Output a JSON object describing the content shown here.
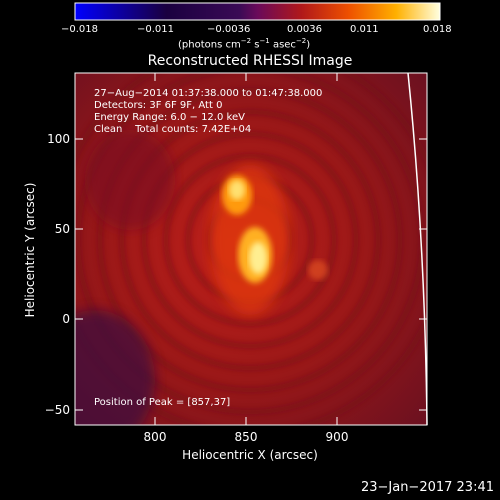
{
  "colorbar": {
    "tick_labels": [
      "−0.018",
      "−0.011",
      "−0.0036",
      "0.0036",
      "0.011",
      "0.018"
    ],
    "units_main": "(photons cm",
    "units_sup1": "−2",
    "units_mid": " s",
    "units_sup2": "−1",
    "units_mid2": " asec",
    "units_sup3": "−2",
    "units_end": ")"
  },
  "title": "Reconstructed RHESSI Image",
  "annotations": {
    "time_range": "27−Aug−2014 01:37:38.000 to 01:47:38.000",
    "detectors": "Detectors: 3F 6F 9F, Att 0",
    "energy": "Energy Range: 6.0 − 12.0 keV",
    "clean": "Clean    Total counts: 7.42E+04",
    "peak": "Position of Peak = [857,37]"
  },
  "axes": {
    "xlabel": "Heliocentric X (arcsec)",
    "ylabel": "Heliocentric Y (arcsec)",
    "x_ticks": [
      "800",
      "850",
      "900"
    ],
    "y_ticks": [
      "100",
      "50",
      "0",
      "−50"
    ]
  },
  "timestamp": "23−Jan−2017 23:41"
}
